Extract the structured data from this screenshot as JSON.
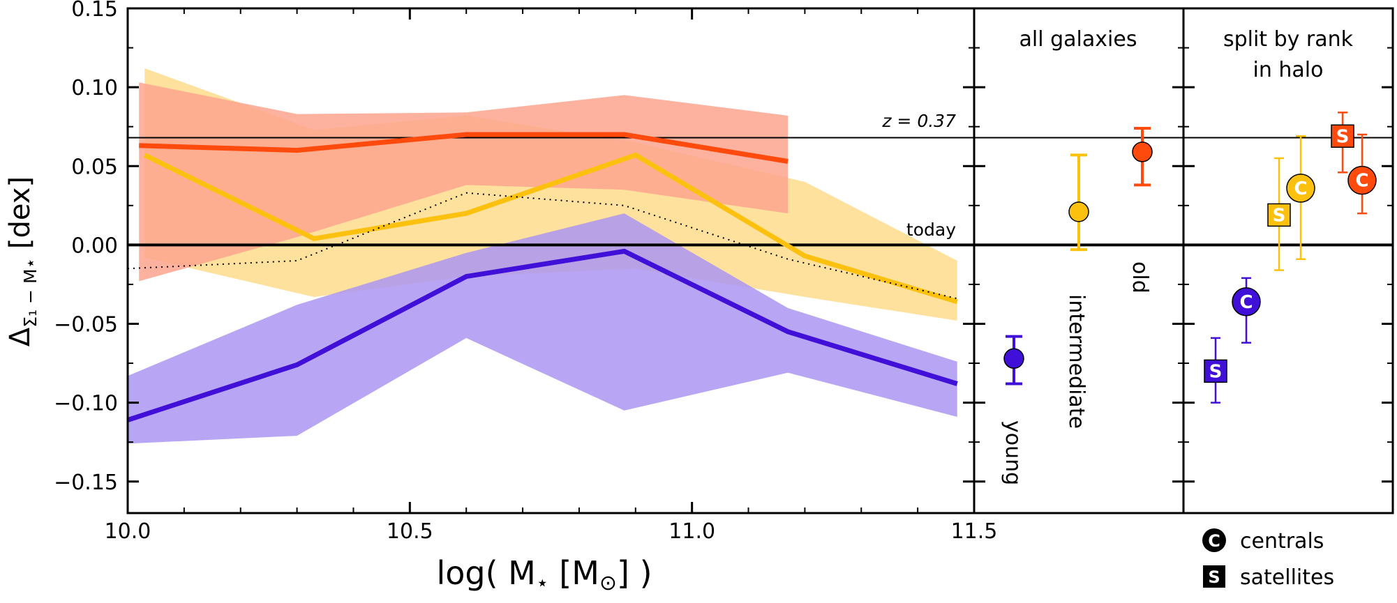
{
  "chart_data": {
    "type": "line",
    "panels": {
      "main": {
        "xlabel_pre": "log( M",
        "xlabel_sub": "⋆",
        "xlabel_mid": " [M",
        "xlabel_sub2": "⊙",
        "xlabel_post": "] )",
        "ylabel_pre": "Δ",
        "ylabel_sub": "Σ₁ − M⋆",
        "ylabel_post": " [dex]",
        "xlim": [
          10.0,
          11.5
        ],
        "ylim": [
          -0.17,
          0.15
        ],
        "xticks": [
          "10.0",
          "10.5",
          "11.0",
          "11.5"
        ],
        "xtick_values": [
          10.0,
          10.5,
          11.0,
          11.5
        ],
        "yticks": [
          "0.15",
          "0.10",
          "0.05",
          "0.00",
          "−0.05",
          "−0.10",
          "−0.15"
        ],
        "ytick_values": [
          0.15,
          0.1,
          0.05,
          0.0,
          -0.05,
          -0.1,
          -0.15
        ],
        "reference_lines": [
          {
            "label": "z = 0.37",
            "y": 0.068
          },
          {
            "label": "today",
            "y": 0.0
          }
        ],
        "series": [
          {
            "name": "old",
            "color": "#ff4a0e",
            "band_color": "#fda58e",
            "x": [
              10.02,
              10.3,
              10.6,
              10.88,
              11.17
            ],
            "values": [
              0.063,
              0.06,
              0.07,
              0.07,
              0.053
            ],
            "band_upper": [
              0.103,
              0.083,
              0.084,
              0.095,
              0.082
            ],
            "band_lower": [
              -0.023,
              0.005,
              0.038,
              0.035,
              0.02
            ]
          },
          {
            "name": "intermediate",
            "color": "#fcc10e",
            "band_color": "#fde19d",
            "x": [
              10.03,
              10.33,
              10.6,
              10.9,
              11.2,
              11.47
            ],
            "values": [
              0.057,
              0.004,
              0.02,
              0.057,
              -0.007,
              -0.036
            ],
            "band_upper": [
              0.112,
              0.073,
              0.082,
              0.065,
              0.04,
              -0.01
            ],
            "band_lower": [
              -0.008,
              -0.033,
              -0.02,
              -0.015,
              -0.033,
              -0.048
            ]
          },
          {
            "name": "young",
            "color": "#4010d8",
            "band_color": "#ab96f2",
            "x": [
              10.0,
              10.3,
              10.6,
              10.88,
              11.17,
              11.47
            ],
            "values": [
              -0.111,
              -0.076,
              -0.02,
              -0.004,
              -0.055,
              -0.088
            ],
            "band_upper": [
              -0.083,
              -0.038,
              -0.005,
              0.02,
              -0.04,
              -0.074
            ],
            "band_lower": [
              -0.126,
              -0.121,
              -0.059,
              -0.105,
              -0.081,
              -0.109
            ]
          },
          {
            "name": "all (dotted)",
            "color": "#000000",
            "x": [
              10.0,
              10.3,
              10.6,
              10.88,
              11.17,
              11.47
            ],
            "values": [
              -0.015,
              -0.01,
              0.033,
              0.025,
              -0.009,
              -0.034
            ]
          }
        ]
      },
      "all_galaxies": {
        "title": "all galaxies",
        "points": [
          {
            "name": "young",
            "label": "young",
            "color": "#4010d8",
            "y": -0.072,
            "err_low": 0.016,
            "err_high": 0.014
          },
          {
            "name": "intermediate",
            "label": "intermediate",
            "color": "#fcc10e",
            "y": 0.021,
            "err_low": 0.024,
            "err_high": 0.036
          },
          {
            "name": "old",
            "label": "old",
            "color": "#ff4a0e",
            "y": 0.059,
            "err_low": 0.021,
            "err_high": 0.015
          }
        ]
      },
      "split_by_rank": {
        "title_line1": "split by rank",
        "title_line2": "in halo",
        "points": [
          {
            "name": "young-satellite",
            "marker": "S",
            "color": "#4010d8",
            "y": -0.08,
            "err_low": 0.02,
            "err_high": 0.021
          },
          {
            "name": "young-central",
            "marker": "C",
            "color": "#4010d8",
            "y": -0.036,
            "err_low": 0.026,
            "err_high": 0.015
          },
          {
            "name": "intermediate-satellite",
            "marker": "S",
            "color": "#fcc10e",
            "y": 0.019,
            "err_low": 0.035,
            "err_high": 0.036
          },
          {
            "name": "intermediate-central",
            "marker": "C",
            "color": "#fcc10e",
            "y": 0.036,
            "err_low": 0.045,
            "err_high": 0.033
          },
          {
            "name": "old-satellite",
            "marker": "S",
            "color": "#ff4a0e",
            "y": 0.069,
            "err_low": 0.023,
            "err_high": 0.015
          },
          {
            "name": "old-central",
            "marker": "C",
            "color": "#ff4a0e",
            "y": 0.041,
            "err_low": 0.021,
            "err_high": 0.029
          }
        ]
      }
    },
    "legend": {
      "placement": "bottom-right",
      "items": [
        {
          "marker": "C",
          "label": "centrals"
        },
        {
          "marker": "S",
          "label": "satellites"
        }
      ]
    }
  }
}
